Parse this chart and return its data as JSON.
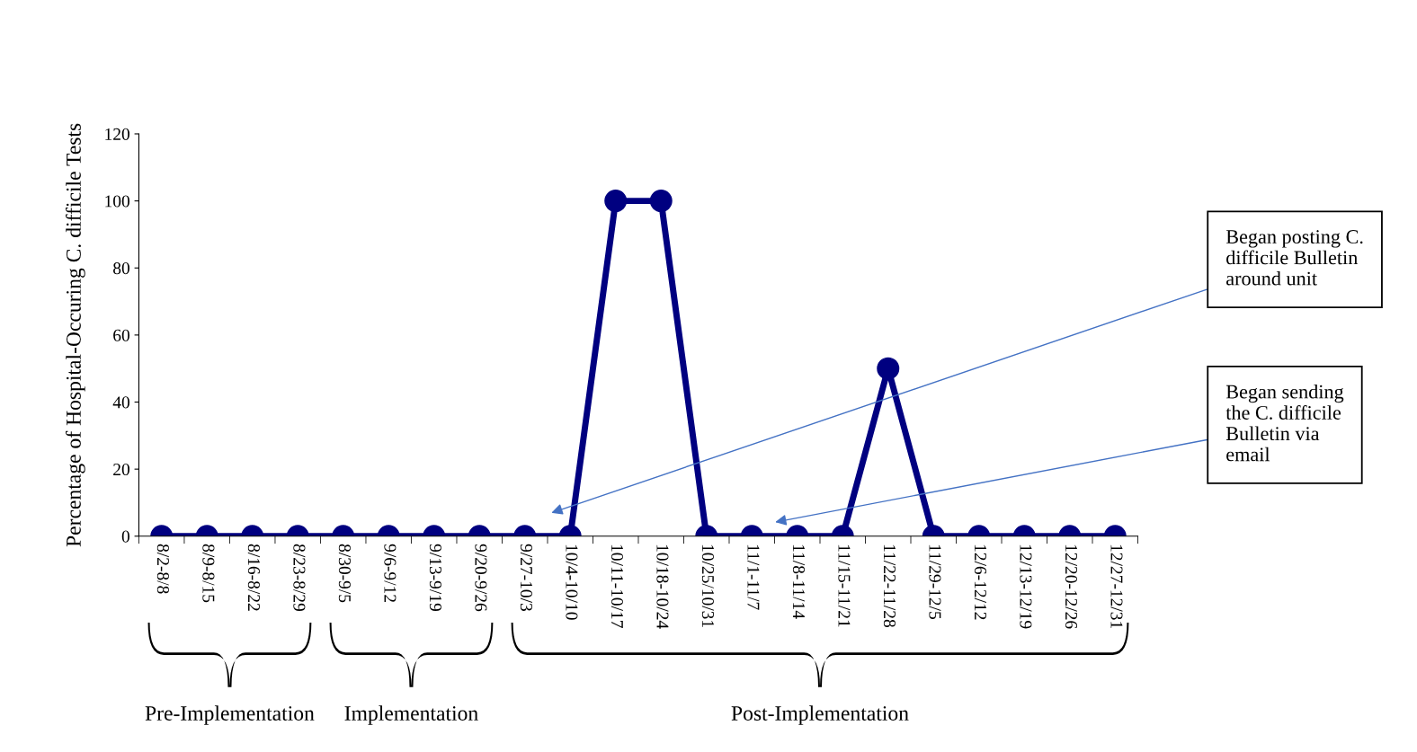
{
  "chart_data": {
    "type": "line",
    "ylabel": "Percentage of Hospital-Occuring C. difficile Tests",
    "categories": [
      "8/2-8/8",
      "8/9-8/15",
      "8/16-8/22",
      "8/23-8/29",
      "8/30-9/5",
      "9/6-9/12",
      "9/13-9/19",
      "9/20-9/26",
      "9/27-10/3",
      "10/4-10/10",
      "10/11-10/17",
      "10/18-10/24",
      "10/25/10/31",
      "11/1-11/7",
      "11/8-11/14",
      "11/15-11/21",
      "11/22-11/28",
      "11/29-12/5",
      "12/6-12/12",
      "12/13-12/19",
      "12/20-12/26",
      "12/27-12/31"
    ],
    "series": [
      {
        "color": "#000080",
        "values": [
          0,
          0,
          0,
          0,
          0,
          0,
          0,
          0,
          0,
          0,
          100,
          100,
          0,
          0,
          0,
          0,
          50,
          0,
          0,
          0,
          0,
          0
        ]
      }
    ],
    "ylim": [
      0,
      120
    ],
    "yticks": [
      0,
      20,
      40,
      60,
      80,
      100,
      120
    ],
    "marker": "circle",
    "line_style": "solid",
    "grid": false,
    "legend": false,
    "annotations": [
      "Began posting C.\ndifficile Bulletin\naround unit",
      "Began sending\nthe C. difficile\nBulletin via\nemail",
      "Pre-Implementation",
      "Implementation",
      "Post-Implementation"
    ]
  }
}
